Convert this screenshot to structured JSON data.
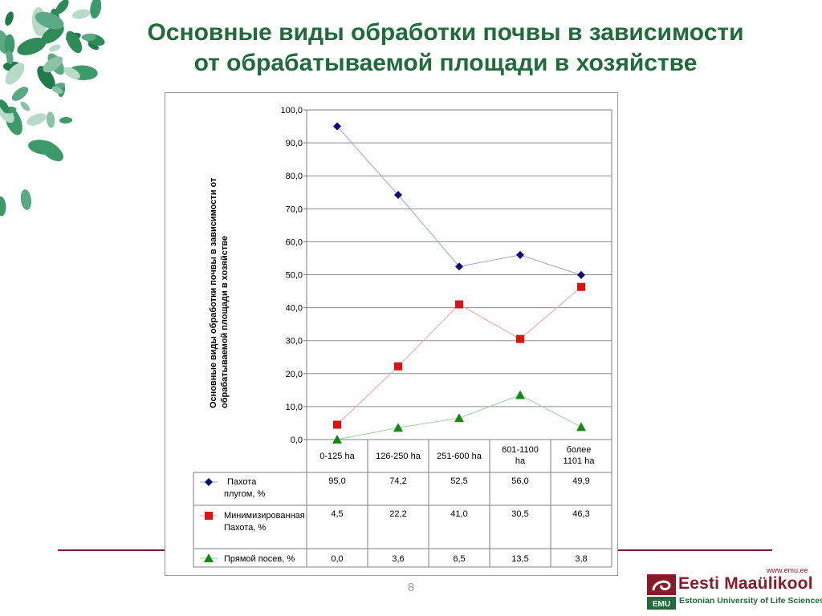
{
  "slide": {
    "title_line1": "Основные виды обработки почвы в зависимости",
    "title_line2": "от обрабатываемой площади в хозяйстве",
    "page_number": "8",
    "colors": {
      "title": "#1f6b3a",
      "rule": "#7d1a2a",
      "brand_red": "#8a1a2a",
      "brand_green": "#1f6b3a"
    }
  },
  "logo": {
    "url": "www.emu.ee",
    "mark_text": "EMU",
    "name": "Eesti Maaülikool",
    "subtitle": "Estonian University of Life Sciences"
  },
  "chart_data": {
    "type": "line",
    "ylabel_line1": "Основные виды обработки почвы  в зависимости от",
    "ylabel_line2": "обрабатываемой площади в хозяйстве",
    "ylim": [
      0,
      100
    ],
    "yticks": [
      "0,0",
      "10,0",
      "20,0",
      "30,0",
      "40,0",
      "50,0",
      "60,0",
      "70,0",
      "80,0",
      "90,0",
      "100,0"
    ],
    "grid": true,
    "legend": "data-table",
    "categories": [
      [
        "0-125 ha"
      ],
      [
        "126-250 ha"
      ],
      [
        "251-600 ha"
      ],
      [
        "601-1100",
        "ha"
      ],
      [
        "более",
        "1101 ha"
      ]
    ],
    "series": [
      {
        "name_lines": [
          "Пахота",
          "плугом, %"
        ],
        "color": "#0b0b7a",
        "line_color": "#9aa3d8",
        "marker": "diamond",
        "values": [
          95.0,
          74.2,
          52.5,
          56.0,
          49.9
        ],
        "labels": [
          "95,0",
          "74,2",
          "52,5",
          "56,0",
          "49,9"
        ]
      },
      {
        "name_lines": [
          "Минимизированная",
          "Пахота, %"
        ],
        "color": "#e01010",
        "line_color": "#f4a0a0",
        "marker": "square",
        "values": [
          4.5,
          22.2,
          41.0,
          30.5,
          46.3
        ],
        "labels": [
          "4,5",
          "22,2",
          "41,0",
          "30,5",
          "46,3"
        ]
      },
      {
        "name_lines": [
          "Прямой посев, %"
        ],
        "color": "#128a12",
        "line_color": "#9ad49a",
        "marker": "triangle",
        "values": [
          0.0,
          3.6,
          6.5,
          13.5,
          3.8
        ],
        "labels": [
          "0,0",
          "3,6",
          "6,5",
          "13,5",
          "3,8"
        ]
      }
    ]
  }
}
